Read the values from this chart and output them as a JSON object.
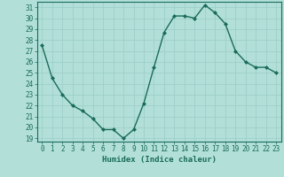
{
  "x": [
    0,
    1,
    2,
    3,
    4,
    5,
    6,
    7,
    8,
    9,
    10,
    11,
    12,
    13,
    14,
    15,
    16,
    17,
    18,
    19,
    20,
    21,
    22,
    23
  ],
  "y": [
    27.5,
    24.5,
    23.0,
    22.0,
    21.5,
    20.8,
    19.8,
    19.8,
    19.0,
    19.8,
    22.2,
    25.5,
    28.7,
    30.2,
    30.2,
    30.0,
    31.2,
    30.5,
    29.5,
    27.0,
    26.0,
    25.5,
    25.5,
    25.0
  ],
  "line_color": "#1a6b5a",
  "marker": "D",
  "marker_size": 2.0,
  "bg_color": "#b2e0d8",
  "grid_color": "#9ecfca",
  "xlim": [
    -0.5,
    23.5
  ],
  "ylim": [
    18.7,
    31.5
  ],
  "yticks": [
    19,
    20,
    21,
    22,
    23,
    24,
    25,
    26,
    27,
    28,
    29,
    30,
    31
  ],
  "xticks": [
    0,
    1,
    2,
    3,
    4,
    5,
    6,
    7,
    8,
    9,
    10,
    11,
    12,
    13,
    14,
    15,
    16,
    17,
    18,
    19,
    20,
    21,
    22,
    23
  ],
  "tick_label_fontsize": 5.5,
  "xlabel": "Humidex (Indice chaleur)",
  "xlabel_fontsize": 6.5,
  "linewidth": 1.0,
  "text_color": "#1a6b5a"
}
